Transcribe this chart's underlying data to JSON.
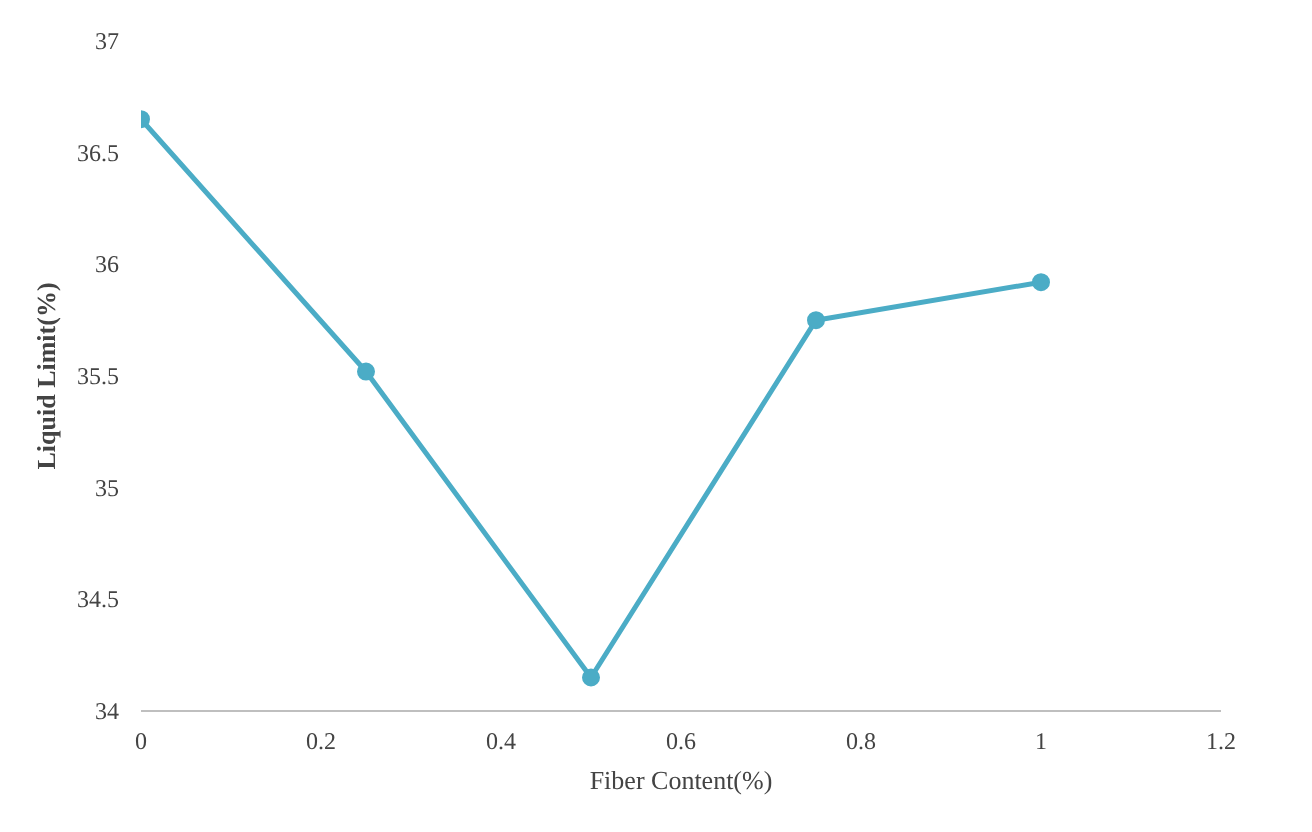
{
  "chart_data": {
    "type": "line",
    "xlabel": "Fiber Content(%)",
    "ylabel": "Liquid Limit(%)",
    "x": [
      0,
      0.25,
      0.5,
      0.75,
      1
    ],
    "series": [
      {
        "color": "#4bacc6",
        "values": [
          36.65,
          35.52,
          34.15,
          35.75,
          35.92
        ]
      }
    ],
    "xlim": [
      0,
      1.2
    ],
    "xticks": [
      0,
      0.2,
      0.4,
      0.6,
      0.8,
      1,
      1.2
    ],
    "ylim": [
      34,
      37
    ],
    "yticks": [
      34,
      34.5,
      35,
      35.5,
      36,
      36.5,
      37
    ],
    "grid": false,
    "marker": "circle",
    "line_style": "solid"
  }
}
